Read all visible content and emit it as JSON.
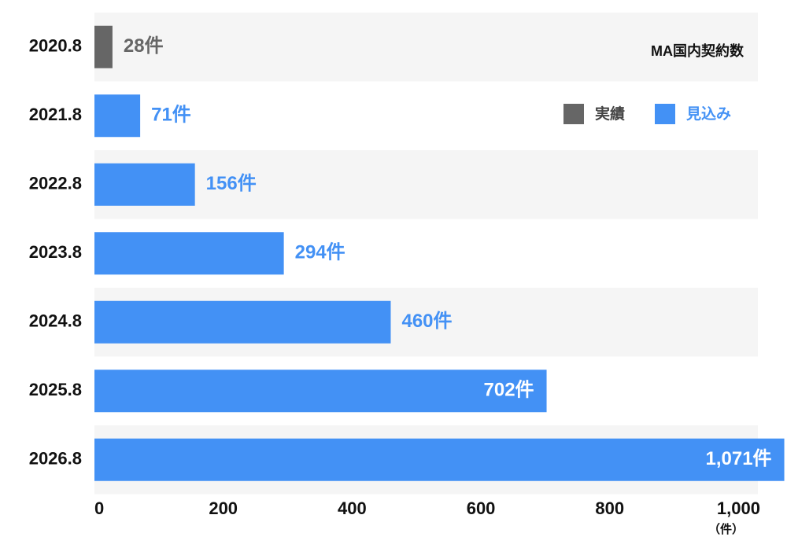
{
  "chart_data": {
    "type": "bar",
    "orientation": "horizontal",
    "title": "MA国内契約数",
    "categories": [
      "2020.8",
      "2021.8",
      "2022.8",
      "2023.8",
      "2024.8",
      "2025.8",
      "2026.8"
    ],
    "series": [
      {
        "name": "実績",
        "color": "#666666",
        "values": [
          28,
          null,
          null,
          null,
          null,
          null,
          null
        ],
        "value_labels": [
          "28件",
          null,
          null,
          null,
          null,
          null,
          null
        ]
      },
      {
        "name": "見込み",
        "color": "#4391f5",
        "values": [
          null,
          71,
          156,
          294,
          460,
          702,
          1071
        ],
        "value_labels": [
          null,
          "71件",
          "156件",
          "294件",
          "460件",
          "702件",
          "1,071件"
        ]
      }
    ],
    "xlim": [
      0,
      1030
    ],
    "xticks": [
      0,
      200,
      400,
      600,
      800,
      {
        "value": 1000,
        "label": "1,000"
      }
    ],
    "x_unit": "（件）",
    "legend": "top-right",
    "row_shading": true
  }
}
